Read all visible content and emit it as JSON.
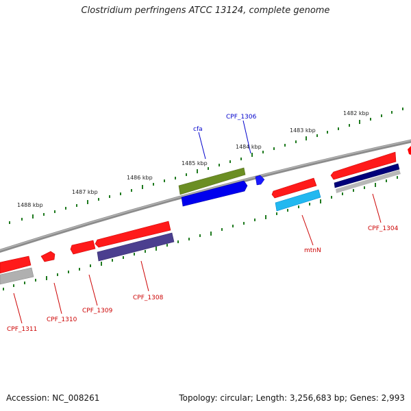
{
  "title": "Clostridium perfringens ATCC 13124, complete genome",
  "footer": {
    "accession": "Accession: NC_008261",
    "topology": "Topology: circular; Length: 3,256,683 bp; Genes: 2,993"
  },
  "colors": {
    "backbone": "#8c8c8c",
    "tick": "#1f7a1f",
    "cds_forward": "#ff0000",
    "cds_reverse_label": "#cc0000",
    "cds_label_top": "#0000cc"
  },
  "ruler": {
    "labels": [
      "1482 kbp",
      "1483 kbp",
      "1484 kbp",
      "1485 kbp",
      "1486 kbp",
      "1487 kbp",
      "1488 kbp"
    ]
  },
  "gene_labels": {
    "top": [
      "CPF_1306",
      "cfa"
    ],
    "bottom": [
      "CPF_1304",
      "mtnN",
      "CPF_1308",
      "CPF_1309",
      "CPF_1310",
      "CPF_1311"
    ]
  }
}
